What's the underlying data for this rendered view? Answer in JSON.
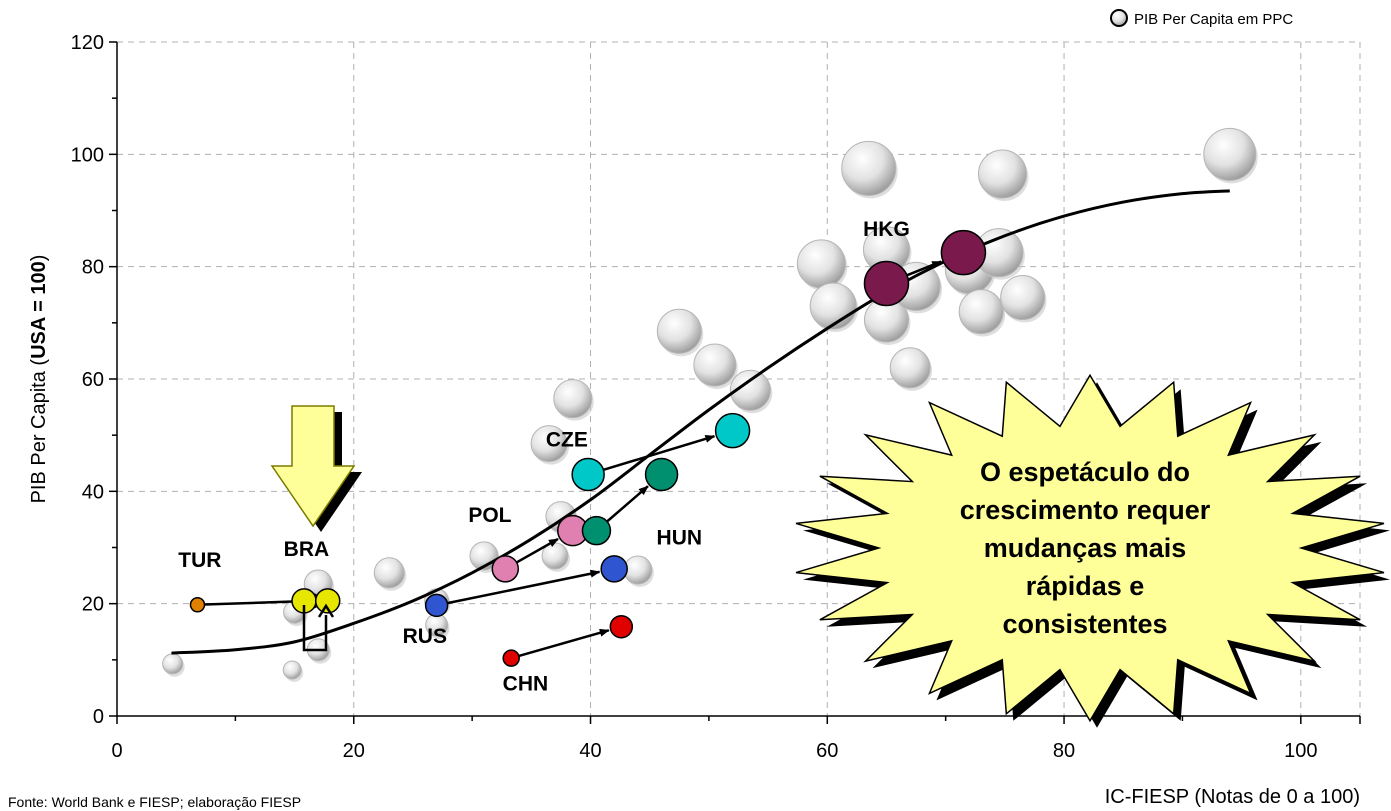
{
  "chart_data": {
    "type": "scatter",
    "xlabel": "IC-FIESP (Notas de 0 a 100)",
    "ylabel_prefix": "PIB Per Capita (",
    "ylabel_bold": "USA = 100",
    "ylabel_suffix": ")",
    "xlim": [
      0,
      105
    ],
    "ylim": [
      0,
      120
    ],
    "xticks": [
      0,
      20,
      40,
      60,
      80,
      100
    ],
    "yticks": [
      0,
      20,
      40,
      60,
      80,
      100,
      120
    ],
    "grid": true,
    "legend": {
      "label": "PIB Per Capita em PPC",
      "position": "top-right"
    },
    "source": "Fonte: World Bank e FIESP; elaboração FIESP",
    "callout": [
      "O espetáculo do",
      "crescimento requer",
      "mudanças mais",
      "rápidas e",
      "consistentes"
    ],
    "background_bubbles": [
      {
        "x": 4.7,
        "y": 9.3,
        "size": 10
      },
      {
        "x": 14.8,
        "y": 8.2,
        "size": 9
      },
      {
        "x": 15.0,
        "y": 18.5,
        "size": 11
      },
      {
        "x": 17.0,
        "y": 23.5,
        "size": 14
      },
      {
        "x": 17.0,
        "y": 11.8,
        "size": 11
      },
      {
        "x": 23.0,
        "y": 25.5,
        "size": 15
      },
      {
        "x": 27.0,
        "y": 20.5,
        "size": 12
      },
      {
        "x": 27.0,
        "y": 16.2,
        "size": 11
      },
      {
        "x": 31.0,
        "y": 28.5,
        "size": 14
      },
      {
        "x": 36.5,
        "y": 48.5,
        "size": 18
      },
      {
        "x": 38.5,
        "y": 56.5,
        "size": 19
      },
      {
        "x": 37.5,
        "y": 35.5,
        "size": 15
      },
      {
        "x": 37.0,
        "y": 28.5,
        "size": 13
      },
      {
        "x": 44.0,
        "y": 26.0,
        "size": 14
      },
      {
        "x": 47.5,
        "y": 68.5,
        "size": 22
      },
      {
        "x": 50.5,
        "y": 62.5,
        "size": 21
      },
      {
        "x": 53.5,
        "y": 58.0,
        "size": 20
      },
      {
        "x": 59.5,
        "y": 80.5,
        "size": 24
      },
      {
        "x": 60.5,
        "y": 73.0,
        "size": 23
      },
      {
        "x": 63.5,
        "y": 97.5,
        "size": 27
      },
      {
        "x": 65.0,
        "y": 83.0,
        "size": 23
      },
      {
        "x": 65.0,
        "y": 70.5,
        "size": 22
      },
      {
        "x": 67.0,
        "y": 62.0,
        "size": 20
      },
      {
        "x": 67.5,
        "y": 76.5,
        "size": 24
      },
      {
        "x": 72.0,
        "y": 79.5,
        "size": 24
      },
      {
        "x": 73.0,
        "y": 72.0,
        "size": 22
      },
      {
        "x": 74.5,
        "y": 82.5,
        "size": 24
      },
      {
        "x": 74.8,
        "y": 96.5,
        "size": 24
      },
      {
        "x": 76.5,
        "y": 74.5,
        "size": 22
      },
      {
        "x": 94.0,
        "y": 100.0,
        "size": 26
      }
    ],
    "series": [
      {
        "name": "TUR",
        "color": "#E08000",
        "points": [
          {
            "x": 6.8,
            "y": 19.8,
            "size": 7
          },
          {
            "x": 16.5,
            "y": 20.5,
            "size": 7
          }
        ],
        "label": {
          "x": 7.0,
          "y": 26.5
        }
      },
      {
        "name": "BRA",
        "color": "#E6E600",
        "points": [
          {
            "x": 15.8,
            "y": 20.5,
            "size": 12
          },
          {
            "x": 17.8,
            "y": 20.5,
            "size": 12
          }
        ],
        "label": {
          "x": 16.0,
          "y": 28.5
        }
      },
      {
        "name": "RUS",
        "color": "#2F55D0",
        "points": [
          {
            "x": 27.0,
            "y": 19.7,
            "size": 11
          },
          {
            "x": 42.0,
            "y": 26.2,
            "size": 13
          }
        ],
        "label": {
          "x": 26.0,
          "y": 13.0
        }
      },
      {
        "name": "CHN",
        "color": "#E00000",
        "points": [
          {
            "x": 33.3,
            "y": 10.3,
            "size": 8
          },
          {
            "x": 42.6,
            "y": 15.9,
            "size": 11
          }
        ],
        "label": {
          "x": 34.5,
          "y": 4.5
        }
      },
      {
        "name": "POL",
        "color": "#E080B0",
        "points": [
          {
            "x": 32.8,
            "y": 26.2,
            "size": 13
          },
          {
            "x": 38.5,
            "y": 33.0,
            "size": 15
          }
        ],
        "label": {
          "x": 31.5,
          "y": 34.5
        }
      },
      {
        "name": "HUN",
        "color": "#009070",
        "points": [
          {
            "x": 40.5,
            "y": 33.0,
            "size": 14
          },
          {
            "x": 46.0,
            "y": 43.0,
            "size": 16
          }
        ],
        "label": {
          "x": 47.5,
          "y": 30.5
        }
      },
      {
        "name": "CZE",
        "color": "#00C8C8",
        "points": [
          {
            "x": 39.8,
            "y": 43.0,
            "size": 16
          },
          {
            "x": 52.0,
            "y": 50.8,
            "size": 17
          }
        ],
        "label": {
          "x": 38.0,
          "y": 48.0
        }
      },
      {
        "name": "HKG",
        "color": "#7A1A4C",
        "points": [
          {
            "x": 65.0,
            "y": 77.0,
            "size": 22
          },
          {
            "x": 71.5,
            "y": 82.5,
            "size": 22
          }
        ],
        "label": {
          "x": 65.0,
          "y": 85.5
        }
      }
    ],
    "trend": [
      {
        "x": 4.6,
        "y": 11.2
      },
      {
        "x": 10,
        "y": 11.8
      },
      {
        "x": 15,
        "y": 13.2
      },
      {
        "x": 20,
        "y": 16.5
      },
      {
        "x": 25,
        "y": 20.5
      },
      {
        "x": 30,
        "y": 25.5
      },
      {
        "x": 35,
        "y": 31.5
      },
      {
        "x": 40,
        "y": 38.5
      },
      {
        "x": 45,
        "y": 46.5
      },
      {
        "x": 50,
        "y": 54.5
      },
      {
        "x": 55,
        "y": 62.0
      },
      {
        "x": 60,
        "y": 69.0
      },
      {
        "x": 65,
        "y": 75.5
      },
      {
        "x": 70,
        "y": 81.0
      },
      {
        "x": 75,
        "y": 85.5
      },
      {
        "x": 80,
        "y": 89.0
      },
      {
        "x": 85,
        "y": 91.5
      },
      {
        "x": 90,
        "y": 93.0
      },
      {
        "x": 94,
        "y": 93.5
      }
    ]
  }
}
